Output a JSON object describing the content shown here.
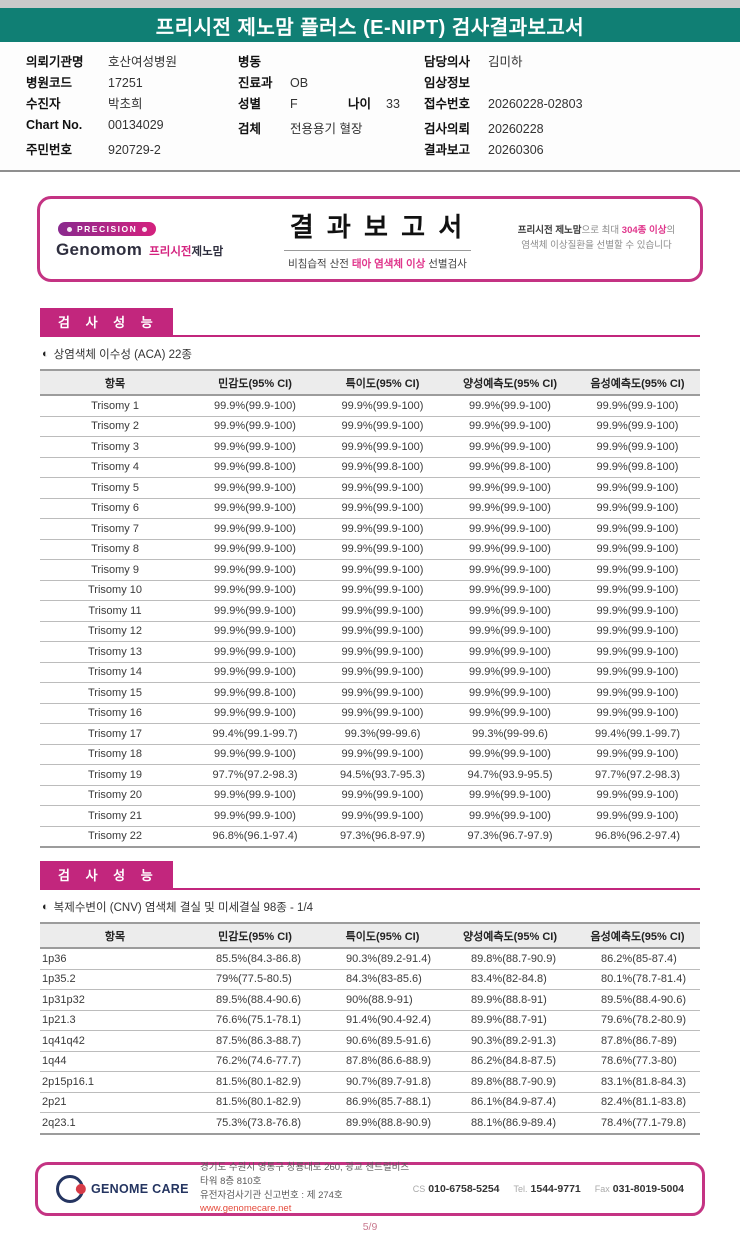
{
  "page": {
    "title": "프리시전 제노맘 플러스 (E-NIPT) 검사결과보고서",
    "page_number": "5/9"
  },
  "colors": {
    "header_teal": "#107f74",
    "accent_magenta": "#c2267d",
    "highlight_pink": "#e0368c"
  },
  "patient_info": {
    "col1": [
      {
        "pairs": [
          {
            "label": "의뢰기관명",
            "value": "호산여성병원"
          }
        ]
      },
      {
        "pairs": [
          {
            "label": "병원코드",
            "value": "17251"
          }
        ]
      },
      {
        "pairs": [
          {
            "label": "수진자",
            "value": "박초희"
          }
        ]
      },
      {
        "pairs": [
          {
            "label": "Chart No.",
            "value": "00134029"
          }
        ],
        "gap": true
      },
      {
        "pairs": [
          {
            "label": "주민번호",
            "value": "920729-2"
          }
        ]
      }
    ],
    "col2": [
      {
        "pairs": [
          {
            "label": "병동",
            "value": ""
          }
        ]
      },
      {
        "pairs": [
          {
            "label": "진료과",
            "value": "OB"
          }
        ]
      },
      {
        "pairs": [
          {
            "label": "성별",
            "value": "F"
          },
          {
            "label": "나이",
            "value": "33"
          }
        ]
      },
      {
        "pairs": [
          {
            "label": "검체",
            "value": "전용용기 혈장"
          }
        ],
        "gap": true
      }
    ],
    "col3": [
      {
        "pairs": [
          {
            "label": "담당의사",
            "value": "김미하"
          }
        ]
      },
      {
        "pairs": [
          {
            "label": "임상정보",
            "value": ""
          }
        ]
      },
      {
        "pairs": [
          {
            "label": "접수번호",
            "value": "20260228-02803"
          }
        ]
      },
      {
        "pairs": [
          {
            "label": "검사의뢰",
            "value": "20260228"
          }
        ],
        "gap": true
      },
      {
        "pairs": [
          {
            "label": "결과보고",
            "value": "20260306"
          }
        ]
      }
    ]
  },
  "report_header": {
    "badge_text": "PRECISION",
    "brand_en": "Genomom",
    "brand_kr_pink": "프리시전",
    "brand_kr_dark": "제노맘",
    "title": "결 과 보 고 서",
    "subtitle_prefix": "비침습적 산전 ",
    "subtitle_highlight": "태아 염색체 이상",
    "subtitle_suffix": " 선별검사",
    "right_bold": "프리시전 제노맘",
    "right_mid": "으로 최대 ",
    "right_pink": "304종 이상",
    "right_end": "의",
    "right_line2": "염색체 이상질환을 선별할 수 있습니다"
  },
  "section1": {
    "header": "검 사 성 능",
    "bullet_icon": "◐",
    "subtitle": "상염색체 이수성 (ACA) 22종",
    "table": {
      "columns": [
        "항목",
        "민감도(95% CI)",
        "특이도(95% CI)",
        "양성예측도(95% CI)",
        "음성예측도(95% CI)"
      ],
      "rows": [
        [
          "Trisomy 1",
          "99.9%(99.9-100)",
          "99.9%(99.9-100)",
          "99.9%(99.9-100)",
          "99.9%(99.9-100)"
        ],
        [
          "Trisomy 2",
          "99.9%(99.9-100)",
          "99.9%(99.9-100)",
          "99.9%(99.9-100)",
          "99.9%(99.9-100)"
        ],
        [
          "Trisomy 3",
          "99.9%(99.9-100)",
          "99.9%(99.9-100)",
          "99.9%(99.9-100)",
          "99.9%(99.9-100)"
        ],
        [
          "Trisomy 4",
          "99.9%(99.8-100)",
          "99.9%(99.8-100)",
          "99.9%(99.8-100)",
          "99.9%(99.8-100)"
        ],
        [
          "Trisomy 5",
          "99.9%(99.9-100)",
          "99.9%(99.9-100)",
          "99.9%(99.9-100)",
          "99.9%(99.9-100)"
        ],
        [
          "Trisomy 6",
          "99.9%(99.9-100)",
          "99.9%(99.9-100)",
          "99.9%(99.9-100)",
          "99.9%(99.9-100)"
        ],
        [
          "Trisomy 7",
          "99.9%(99.9-100)",
          "99.9%(99.9-100)",
          "99.9%(99.9-100)",
          "99.9%(99.9-100)"
        ],
        [
          "Trisomy 8",
          "99.9%(99.9-100)",
          "99.9%(99.9-100)",
          "99.9%(99.9-100)",
          "99.9%(99.9-100)"
        ],
        [
          "Trisomy 9",
          "99.9%(99.9-100)",
          "99.9%(99.9-100)",
          "99.9%(99.9-100)",
          "99.9%(99.9-100)"
        ],
        [
          "Trisomy 10",
          "99.9%(99.9-100)",
          "99.9%(99.9-100)",
          "99.9%(99.9-100)",
          "99.9%(99.9-100)"
        ],
        [
          "Trisomy 11",
          "99.9%(99.9-100)",
          "99.9%(99.9-100)",
          "99.9%(99.9-100)",
          "99.9%(99.9-100)"
        ],
        [
          "Trisomy 12",
          "99.9%(99.9-100)",
          "99.9%(99.9-100)",
          "99.9%(99.9-100)",
          "99.9%(99.9-100)"
        ],
        [
          "Trisomy 13",
          "99.9%(99.9-100)",
          "99.9%(99.9-100)",
          "99.9%(99.9-100)",
          "99.9%(99.9-100)"
        ],
        [
          "Trisomy 14",
          "99.9%(99.9-100)",
          "99.9%(99.9-100)",
          "99.9%(99.9-100)",
          "99.9%(99.9-100)"
        ],
        [
          "Trisomy 15",
          "99.9%(99.8-100)",
          "99.9%(99.9-100)",
          "99.9%(99.9-100)",
          "99.9%(99.9-100)"
        ],
        [
          "Trisomy 16",
          "99.9%(99.9-100)",
          "99.9%(99.9-100)",
          "99.9%(99.9-100)",
          "99.9%(99.9-100)"
        ],
        [
          "Trisomy 17",
          "99.4%(99.1-99.7)",
          "99.3%(99-99.6)",
          "99.3%(99-99.6)",
          "99.4%(99.1-99.7)"
        ],
        [
          "Trisomy 18",
          "99.9%(99.9-100)",
          "99.9%(99.9-100)",
          "99.9%(99.9-100)",
          "99.9%(99.9-100)"
        ],
        [
          "Trisomy 19",
          "97.7%(97.2-98.3)",
          "94.5%(93.7-95.3)",
          "94.7%(93.9-95.5)",
          "97.7%(97.2-98.3)"
        ],
        [
          "Trisomy 20",
          "99.9%(99.9-100)",
          "99.9%(99.9-100)",
          "99.9%(99.9-100)",
          "99.9%(99.9-100)"
        ],
        [
          "Trisomy 21",
          "99.9%(99.9-100)",
          "99.9%(99.9-100)",
          "99.9%(99.9-100)",
          "99.9%(99.9-100)"
        ],
        [
          "Trisomy 22",
          "96.8%(96.1-97.4)",
          "97.3%(96.8-97.9)",
          "97.3%(96.7-97.9)",
          "96.8%(96.2-97.4)"
        ]
      ]
    }
  },
  "section2": {
    "header": "검 사 성 능",
    "bullet_icon": "◐",
    "subtitle": "복제수변이 (CNV) 염색체 결실 및 미세결실 98종 - 1/4",
    "table": {
      "columns": [
        "항목",
        "민감도(95% CI)",
        "특이도(95% CI)",
        "양성예측도(95% CI)",
        "음성예측도(95% CI)"
      ],
      "rows": [
        [
          "1p36",
          "85.5%(84.3-86.8)",
          "90.3%(89.2-91.4)",
          "89.8%(88.7-90.9)",
          "86.2%(85-87.4)"
        ],
        [
          "1p35.2",
          "79%(77.5-80.5)",
          "84.3%(83-85.6)",
          "83.4%(82-84.8)",
          "80.1%(78.7-81.4)"
        ],
        [
          "1p31p32",
          "89.5%(88.4-90.6)",
          "90%(88.9-91)",
          "89.9%(88.8-91)",
          "89.5%(88.4-90.6)"
        ],
        [
          "1p21.3",
          "76.6%(75.1-78.1)",
          "91.4%(90.4-92.4)",
          "89.9%(88.7-91)",
          "79.6%(78.2-80.9)"
        ],
        [
          "1q41q42",
          "87.5%(86.3-88.7)",
          "90.6%(89.5-91.6)",
          "90.3%(89.2-91.3)",
          "87.8%(86.7-89)"
        ],
        [
          "1q44",
          "76.2%(74.6-77.7)",
          "87.8%(86.6-88.9)",
          "86.2%(84.8-87.5)",
          "78.6%(77.3-80)"
        ],
        [
          "2p15p16.1",
          "81.5%(80.1-82.9)",
          "90.7%(89.7-91.8)",
          "89.8%(88.7-90.9)",
          "83.1%(81.8-84.3)"
        ],
        [
          "2p21",
          "81.5%(80.1-82.9)",
          "86.9%(85.7-88.1)",
          "86.1%(84.9-87.4)",
          "82.4%(81.1-83.8)"
        ],
        [
          "2q23.1",
          "75.3%(73.8-76.8)",
          "89.9%(88.8-90.9)",
          "88.1%(86.9-89.4)",
          "78.4%(77.1-79.8)"
        ]
      ]
    }
  },
  "footer": {
    "logo_text": "GENOME CARE",
    "address_line1": "경기도 수원시 영통구 창룡대로 260, 광교 센트럴비즈타워 8층 810호",
    "address_line2": "유전자검사기관 신고번호 : 제 274호",
    "website": "www.genomecare.net",
    "contacts": [
      {
        "label": "CS",
        "value": "010-6758-5254"
      },
      {
        "label": "Tel.",
        "value": "1544-9771"
      },
      {
        "label": "Fax",
        "value": "031-8019-5004"
      }
    ]
  }
}
